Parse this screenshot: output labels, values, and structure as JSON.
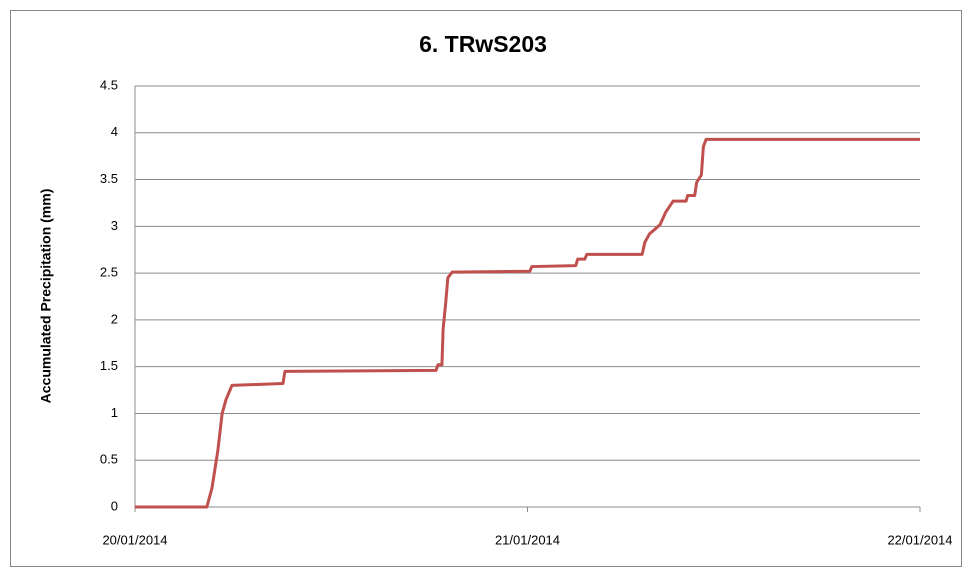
{
  "chart_data": {
    "type": "line",
    "title": "6. TRwS203",
    "ylabel": "Accumulated  Precipitation (mm)",
    "x": [
      0,
      0.183,
      0.196,
      0.211,
      0.222,
      0.232,
      0.247,
      0.377,
      0.382,
      0.767,
      0.772,
      0.782,
      0.785,
      0.792,
      0.797,
      0.808,
      1.006,
      1.011,
      1.123,
      1.128,
      1.146,
      1.151,
      1.292,
      1.299,
      1.311,
      1.325,
      1.338,
      1.352,
      1.371,
      1.404,
      1.408,
      1.426,
      1.431,
      1.443,
      1.448,
      1.455,
      2
    ],
    "series": [
      {
        "color": "#c0504d",
        "values": [
          0,
          0,
          0.2,
          0.6,
          1.0,
          1.15,
          1.3,
          1.32,
          1.45,
          1.46,
          1.52,
          1.52,
          1.9,
          2.2,
          2.45,
          2.51,
          2.52,
          2.57,
          2.58,
          2.65,
          2.65,
          2.7,
          2.7,
          2.83,
          2.92,
          2.97,
          3.02,
          3.15,
          3.27,
          3.27,
          3.33,
          3.33,
          3.47,
          3.55,
          3.85,
          3.93,
          3.93
        ]
      }
    ],
    "xlim": [
      0,
      2
    ],
    "xticks": [
      {
        "value": 0,
        "label": "20/01/2014"
      },
      {
        "value": 1,
        "label": "21/01/2014"
      },
      {
        "value": 2,
        "label": "22/01/2014"
      }
    ],
    "ylim": [
      0,
      4.5
    ],
    "yticks": [
      0,
      0.5,
      1,
      1.5,
      2,
      2.5,
      3,
      3.5,
      4,
      4.5
    ],
    "grid": true
  }
}
